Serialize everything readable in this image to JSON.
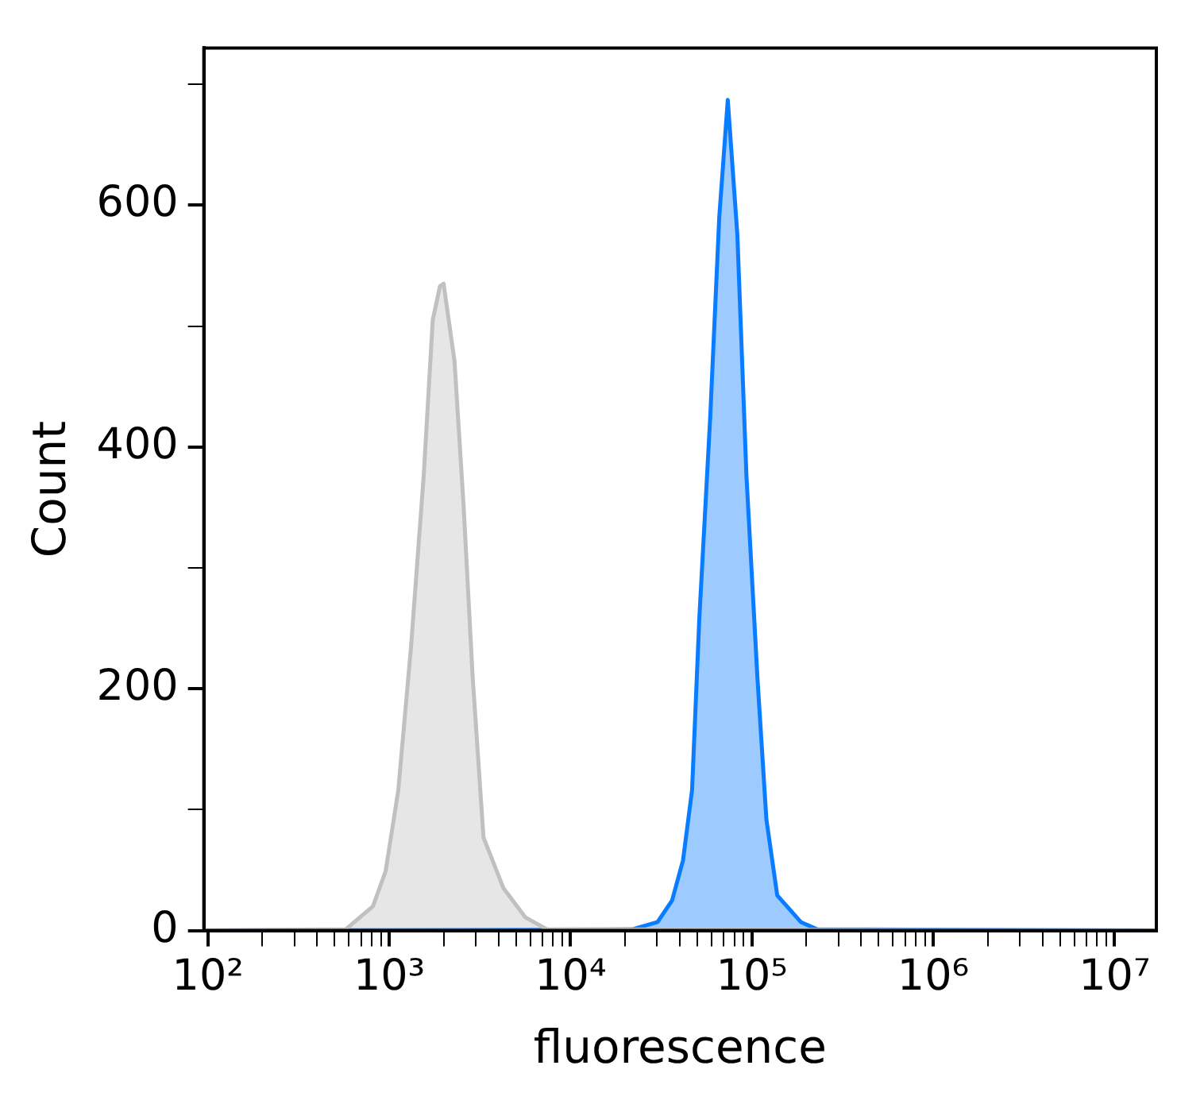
{
  "chart_data": {
    "type": "area",
    "xlabel": "fluorescence",
    "ylabel": "Count",
    "log": "x",
    "grid": false,
    "legend": false,
    "marker": "none",
    "line_style": "solid",
    "xlim": [
      95,
      17000000
    ],
    "ylim": [
      0,
      730
    ],
    "xticks": [
      {
        "value": 100,
        "label": "10²"
      },
      {
        "value": 200,
        "label": null
      },
      {
        "value": 300,
        "label": null
      },
      {
        "value": 400,
        "label": null
      },
      {
        "value": 500,
        "label": null
      },
      {
        "value": 600,
        "label": null
      },
      {
        "value": 700,
        "label": null
      },
      {
        "value": 800,
        "label": null
      },
      {
        "value": 900,
        "label": null
      },
      {
        "value": 1000,
        "label": "10³"
      },
      {
        "value": 2000,
        "label": null
      },
      {
        "value": 3000,
        "label": null
      },
      {
        "value": 4000,
        "label": null
      },
      {
        "value": 5000,
        "label": null
      },
      {
        "value": 6000,
        "label": null
      },
      {
        "value": 7000,
        "label": null
      },
      {
        "value": 8000,
        "label": null
      },
      {
        "value": 9000,
        "label": null
      },
      {
        "value": 10000,
        "label": "10⁴"
      },
      {
        "value": 20000,
        "label": null
      },
      {
        "value": 30000,
        "label": null
      },
      {
        "value": 40000,
        "label": null
      },
      {
        "value": 50000,
        "label": null
      },
      {
        "value": 60000,
        "label": null
      },
      {
        "value": 70000,
        "label": null
      },
      {
        "value": 80000,
        "label": null
      },
      {
        "value": 90000,
        "label": null
      },
      {
        "value": 100000,
        "label": "10⁵"
      },
      {
        "value": 200000,
        "label": null
      },
      {
        "value": 300000,
        "label": null
      },
      {
        "value": 400000,
        "label": null
      },
      {
        "value": 500000,
        "label": null
      },
      {
        "value": 600000,
        "label": null
      },
      {
        "value": 700000,
        "label": null
      },
      {
        "value": 800000,
        "label": null
      },
      {
        "value": 900000,
        "label": null
      },
      {
        "value": 1000000,
        "label": "10⁶"
      },
      {
        "value": 2000000,
        "label": null
      },
      {
        "value": 3000000,
        "label": null
      },
      {
        "value": 4000000,
        "label": null
      },
      {
        "value": 5000000,
        "label": null
      },
      {
        "value": 6000000,
        "label": null
      },
      {
        "value": 7000000,
        "label": null
      },
      {
        "value": 8000000,
        "label": null
      },
      {
        "value": 9000000,
        "label": null
      },
      {
        "value": 10000000,
        "label": "10⁷"
      }
    ],
    "yticks": [
      0,
      {
        "value": 100,
        "label": null
      },
      200,
      {
        "value": 300,
        "label": null
      },
      400,
      {
        "value": 500,
        "label": null
      },
      600,
      {
        "value": 700,
        "label": null
      }
    ],
    "series": [
      {
        "color": "#c0c0c0",
        "x": [
          95,
          575,
          813,
          955,
          1122,
          1318,
          1549,
          1738,
          1905,
          1995,
          2291,
          2570,
          2884,
          3311,
          4266,
          5623,
          7413,
          17000000
        ],
        "values": [
          0,
          1,
          20,
          49,
          116,
          234,
          376,
          505,
          533,
          535,
          471,
          352,
          210,
          77,
          35,
          11,
          1,
          0
        ]
      },
      {
        "color": "#0a7cff",
        "x": [
          95,
          21880,
          30200,
          36310,
          41690,
          46770,
          51290,
          58880,
          66070,
          73620,
          83180,
          93330,
          107200,
          120200,
          138000,
          186200,
          229100,
          17000000
        ],
        "values": [
          0,
          1,
          7,
          25,
          58,
          116,
          258,
          424,
          590,
          687,
          575,
          376,
          210,
          92,
          29,
          7,
          1,
          0
        ]
      }
    ]
  }
}
